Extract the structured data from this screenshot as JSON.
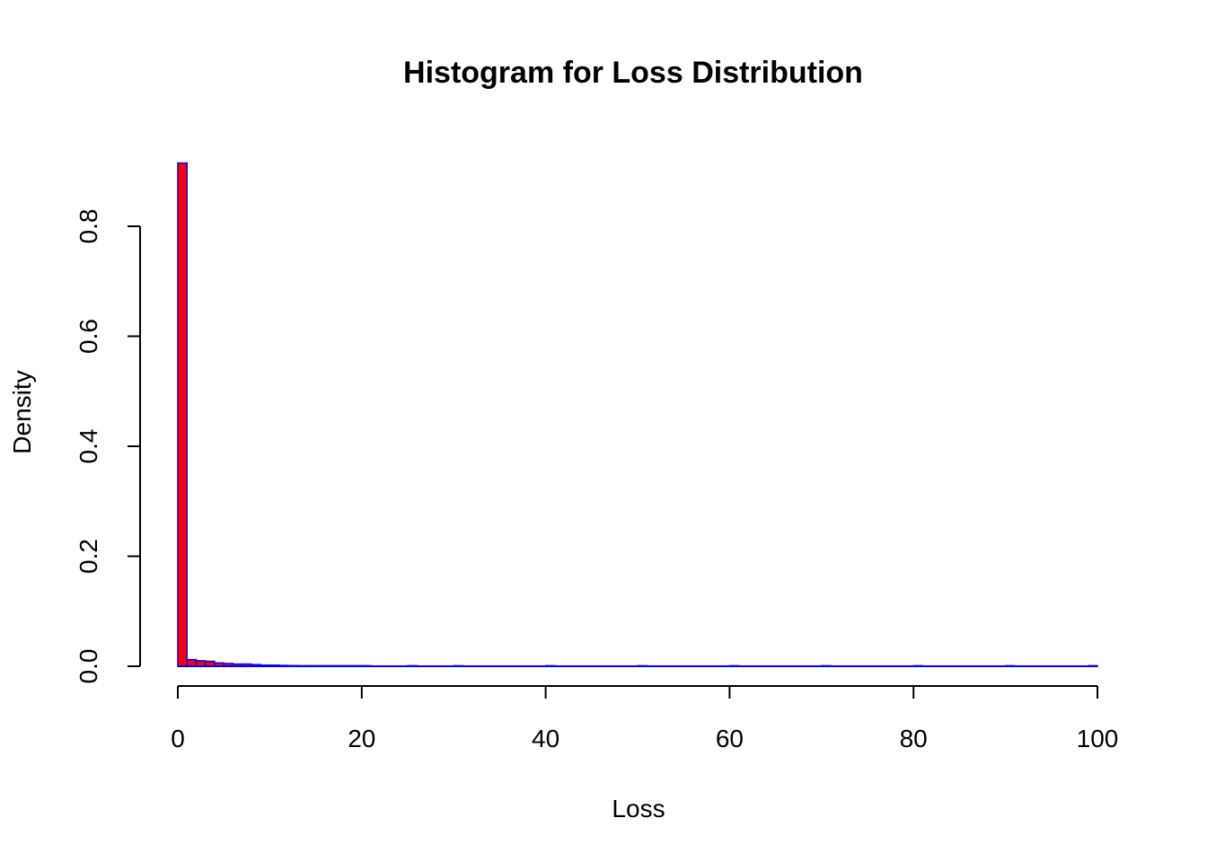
{
  "chart_data": {
    "type": "bar",
    "title": "Histogram for Loss Distribution",
    "xlabel": "Loss",
    "ylabel": "Density",
    "xlim": [
      0,
      100
    ],
    "ylim": [
      0,
      0.92
    ],
    "x_ticks": [
      "0",
      "20",
      "40",
      "60",
      "80",
      "100"
    ],
    "x_tick_values": [
      0,
      20,
      40,
      60,
      80,
      100
    ],
    "y_ticks": [
      "0.0",
      "0.2",
      "0.4",
      "0.6",
      "0.8"
    ],
    "y_tick_values": [
      0.0,
      0.2,
      0.4,
      0.6,
      0.8
    ],
    "bin_width": 1,
    "bin_starts": [
      0,
      1,
      2,
      3,
      4,
      5,
      6,
      7,
      8,
      9,
      10,
      11,
      12,
      13,
      14,
      15,
      16,
      17,
      18,
      19,
      20,
      25,
      30,
      40,
      50,
      60,
      70,
      80,
      90,
      99
    ],
    "values": [
      0.915,
      0.012,
      0.01,
      0.009,
      0.006,
      0.005,
      0.004,
      0.004,
      0.003,
      0.002,
      0.002,
      0.0015,
      0.0012,
      0.001,
      0.001,
      0.0008,
      0.0007,
      0.0006,
      0.0005,
      0.0005,
      0.0004,
      0.0003,
      0.0002,
      0.0001,
      0.0001,
      8e-05,
      6e-05,
      5e-05,
      4e-05,
      3e-05
    ],
    "grid": false,
    "colors": {
      "bar_fill": "#ff0000",
      "bar_border": "#0000ff",
      "axis": "#000000",
      "background": "#ffffff"
    }
  }
}
